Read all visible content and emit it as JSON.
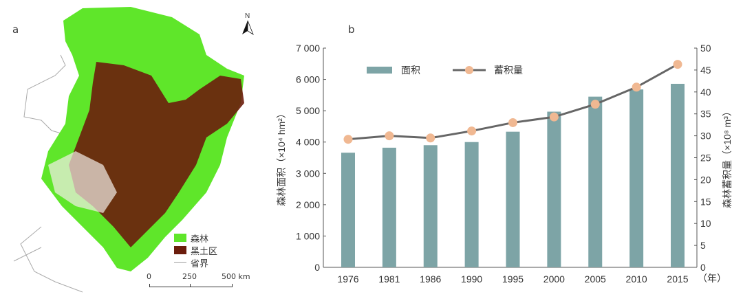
{
  "panel_a": {
    "label": "a",
    "north_label": "N",
    "legend": [
      {
        "label": "森林",
        "color": "#5fe62a"
      },
      {
        "label": "黑土区",
        "color": "#6b1d0c"
      },
      {
        "label": "省界",
        "color": "#999999"
      }
    ],
    "scale_bar": {
      "ticks": [
        "0",
        "250",
        "500 km"
      ]
    }
  },
  "panel_b": {
    "label": "b"
  },
  "chart_data": {
    "type": "bar+line",
    "categories": [
      "1976",
      "1981",
      "1986",
      "1990",
      "1995",
      "2000",
      "2005",
      "2010",
      "2015"
    ],
    "x_unit_label": "（年）",
    "series": [
      {
        "name": "面积",
        "type": "bar",
        "axis": "left",
        "color": "#7da4a6",
        "values": [
          3660,
          3820,
          3900,
          4000,
          4330,
          4970,
          5450,
          5680,
          5860
        ]
      },
      {
        "name": "蓄积量",
        "type": "line",
        "axis": "right",
        "line_color": "#666666",
        "marker_color": "#f0b892",
        "values": [
          29.2,
          30.0,
          29.5,
          31.1,
          33.0,
          34.3,
          37.2,
          41.1,
          46.3
        ]
      }
    ],
    "left_axis": {
      "label": "森林面积（×10⁴ hm²）",
      "ylim": [
        0,
        7000
      ],
      "ticks": [
        "0",
        "1 000",
        "2 000",
        "3 000",
        "4 000",
        "5 000",
        "6 000",
        "7 000"
      ]
    },
    "right_axis": {
      "label": "森林蓄积量（×10⁸ m³）",
      "ylim": [
        0,
        50
      ],
      "ticks": [
        "0",
        "5",
        "10",
        "15",
        "20",
        "25",
        "30",
        "35",
        "40",
        "45",
        "50"
      ]
    },
    "legend_placement": "top-left",
    "grid": false
  }
}
